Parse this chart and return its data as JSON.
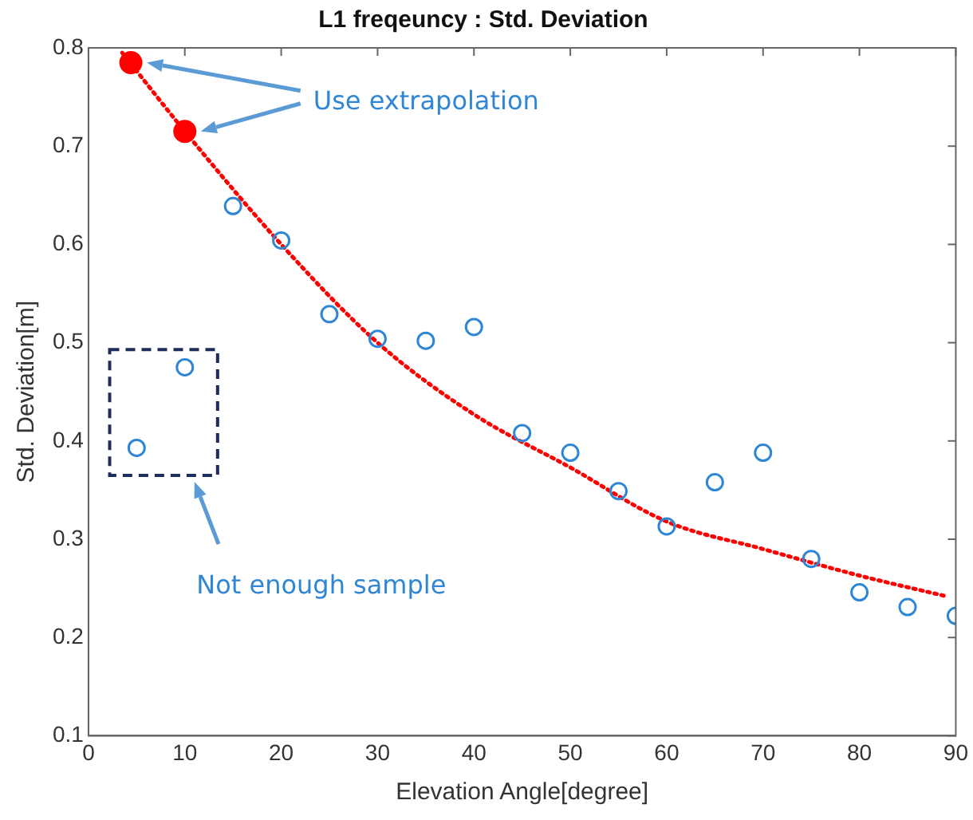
{
  "chart_data": {
    "type": "scatter",
    "title": "L1 freqeuncy : Std. Deviation",
    "xlabel": "Elevation Angle[degree]",
    "ylabel": "Std. Deviation[m]",
    "series": [
      {
        "color": "#2f86d4",
        "marker": "circle",
        "x": [
          5,
          10,
          15,
          20,
          25,
          30,
          35,
          40,
          45,
          50,
          55,
          60,
          65,
          70,
          75,
          80,
          85,
          90
        ],
        "values": [
          0.393,
          0.475,
          0.639,
          0.604,
          0.529,
          0.504,
          0.502,
          0.516,
          0.408,
          0.388,
          0.349,
          0.313,
          0.358,
          0.388,
          0.28,
          0.246,
          0.231,
          0.222
        ]
      },
      {
        "color": "#ff0000",
        "marker": "circle",
        "x": [
          4.4,
          10
        ],
        "values": [
          0.785,
          0.715
        ]
      },
      {
        "type": "line",
        "color": "#ff0000",
        "line_style": "dotted",
        "x": [
          3.5,
          10,
          20,
          30,
          40,
          50,
          60,
          70,
          80,
          89
        ],
        "values": [
          0.795,
          0.715,
          0.6,
          0.5,
          0.427,
          0.373,
          0.318,
          0.29,
          0.263,
          0.242
        ]
      }
    ],
    "xlim": [
      0,
      90
    ],
    "xticks": [
      0,
      10,
      20,
      30,
      40,
      50,
      60,
      70,
      80,
      90
    ],
    "ylim": [
      0.1,
      0.8
    ],
    "yticks": [
      0.1,
      0.2,
      0.3,
      0.4,
      0.5,
      0.6,
      0.7,
      0.8
    ],
    "grid": false,
    "legend": false,
    "annotations": [
      "Use extrapolation",
      "Not enough sample"
    ]
  }
}
